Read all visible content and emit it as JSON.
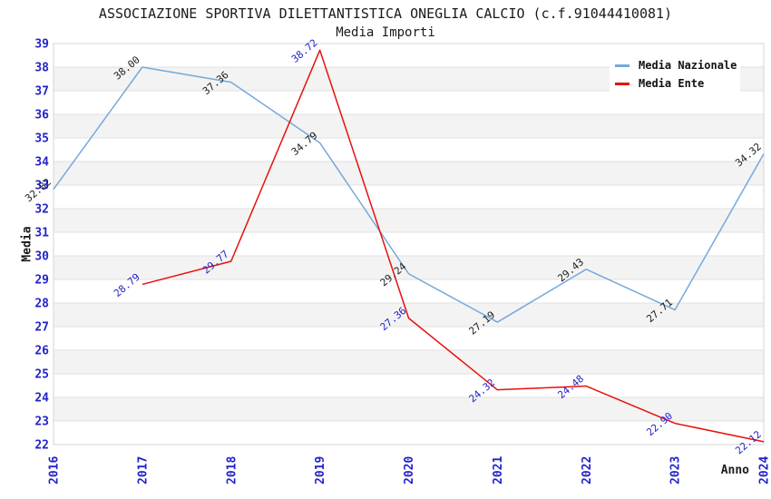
{
  "header": {
    "title": "ASSOCIAZIONE SPORTIVA DILETTANTISTICA ONEGLIA CALCIO (c.f.91044410081)",
    "subtitle": "Media Importi"
  },
  "colors": {
    "tick_label": "#2323c8",
    "band_fill": "#f3f3f3",
    "gridline": "#e2e2e2",
    "plot_border": "#d6d6d6",
    "title_text": "#1a1a1a",
    "series_nazionale": "#74a9dc",
    "series_ente": "#e8100c"
  },
  "chart_data": {
    "type": "line",
    "title": "ASSOCIAZIONE SPORTIVA DILETTANTISTICA ONEGLIA CALCIO (c.f.91044410081)",
    "subtitle": "Media Importi",
    "xlabel": "Anno",
    "ylabel": "Media",
    "categories": [
      "2016",
      "2017",
      "2018",
      "2019",
      "2020",
      "2021",
      "2022",
      "2023",
      "2024"
    ],
    "ylim": [
      22,
      39
    ],
    "ytick_step": 1,
    "grid": "horizontal gridlines at every integer with alternating shaded row bands",
    "legend_position": "top-right inside plot area",
    "point_label_format": "2 decimals, rotated ~40deg above-left of each point",
    "series": [
      {
        "name": "Media Nazionale",
        "color": "#74a9dc",
        "label_color": "#1c1c1c",
        "values": [
          32.82,
          38.0,
          37.36,
          34.79,
          29.24,
          27.19,
          29.43,
          27.71,
          34.32
        ]
      },
      {
        "name": "Media Ente",
        "color": "#e8100c",
        "label_color": "#2323c8",
        "values": [
          null,
          28.79,
          29.77,
          38.72,
          27.36,
          24.32,
          24.48,
          22.9,
          22.12
        ]
      }
    ]
  }
}
